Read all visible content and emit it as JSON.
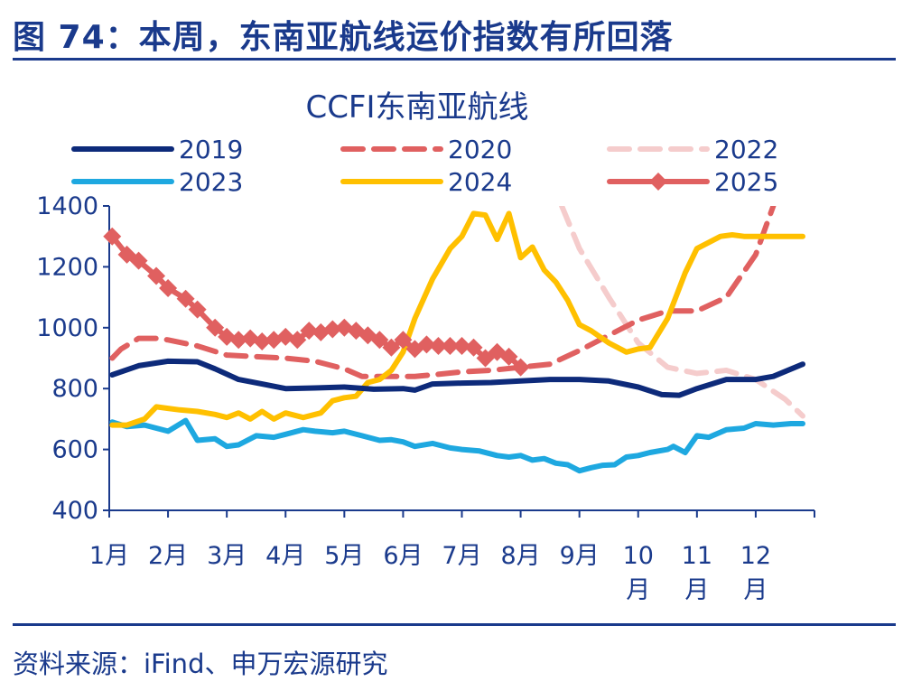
{
  "figure": {
    "title": "图 74：本周，东南亚航线运价指数有所回落",
    "source": "资料来源：iFind、申万宏源研究"
  },
  "chart_data": {
    "type": "line",
    "title": "CCFI东南亚航线",
    "xlabel": "",
    "ylabel": "",
    "ylim": [
      400,
      1400
    ],
    "yticks": [
      400,
      600,
      800,
      1000,
      1200,
      1400
    ],
    "xlim": [
      1,
      13
    ],
    "month_labels": [
      {
        "x": 1,
        "lines": [
          "1月"
        ]
      },
      {
        "x": 2,
        "lines": [
          "2月"
        ]
      },
      {
        "x": 3,
        "lines": [
          "3月"
        ]
      },
      {
        "x": 4,
        "lines": [
          "4月"
        ]
      },
      {
        "x": 5,
        "lines": [
          "5月"
        ]
      },
      {
        "x": 6,
        "lines": [
          "6月"
        ]
      },
      {
        "x": 7,
        "lines": [
          "7月"
        ]
      },
      {
        "x": 8,
        "lines": [
          "8月"
        ]
      },
      {
        "x": 9,
        "lines": [
          "9月"
        ]
      },
      {
        "x": 10,
        "lines": [
          "10",
          "月"
        ]
      },
      {
        "x": 11,
        "lines": [
          "11",
          "月"
        ]
      },
      {
        "x": 12,
        "lines": [
          "12",
          "月"
        ]
      }
    ],
    "grid": false,
    "legend_position": "top",
    "series": [
      {
        "name": "2019",
        "color": "#0d2a7a",
        "style": "solid",
        "x": [
          1.05,
          1.5,
          2,
          2.5,
          2.8,
          3.2,
          3.6,
          4,
          4.5,
          5,
          5.5,
          6,
          6.2,
          6.5,
          7,
          7.5,
          8,
          8.5,
          9,
          9.5,
          10,
          10.4,
          10.7,
          11,
          11.5,
          12,
          12.3,
          12.8
        ],
        "y": [
          845,
          875,
          890,
          888,
          865,
          830,
          815,
          800,
          802,
          805,
          798,
          800,
          795,
          815,
          818,
          820,
          825,
          830,
          830,
          825,
          805,
          780,
          778,
          800,
          830,
          830,
          840,
          880
        ]
      },
      {
        "name": "2020",
        "color": "#e06060",
        "style": "dash",
        "x": [
          1.05,
          1.2,
          1.5,
          1.8,
          2,
          2.5,
          3,
          3.5,
          4,
          4.5,
          5,
          5.3,
          5.8,
          6.2,
          6.5,
          7,
          7.5,
          8,
          8.5,
          9,
          9.5,
          10,
          10.5,
          11,
          11.5,
          12,
          12.3
        ],
        "y": [
          900,
          930,
          965,
          965,
          960,
          940,
          910,
          905,
          900,
          890,
          865,
          840,
          840,
          840,
          845,
          855,
          860,
          870,
          880,
          925,
          975,
          1025,
          1055,
          1055,
          1100,
          1240,
          1400
        ]
      },
      {
        "name": "2022",
        "color": "#f5cccc",
        "style": "dash",
        "x": [
          8.7,
          9,
          9.5,
          10,
          10.5,
          11,
          11.5,
          12,
          12.5,
          12.8
        ],
        "y": [
          1400,
          1260,
          1100,
          950,
          870,
          850,
          860,
          830,
          765,
          710
        ]
      },
      {
        "name": "2023",
        "color": "#1ea8e0",
        "style": "solid",
        "x": [
          1.05,
          1.3,
          1.6,
          2,
          2.3,
          2.5,
          2.8,
          3,
          3.2,
          3.5,
          3.8,
          4,
          4.3,
          4.5,
          4.8,
          5,
          5.3,
          5.6,
          5.8,
          6,
          6.2,
          6.5,
          6.8,
          7,
          7.3,
          7.6,
          7.8,
          8,
          8.2,
          8.4,
          8.6,
          8.8,
          9,
          9.2,
          9.4,
          9.6,
          9.8,
          10,
          10.2,
          10.5,
          10.6,
          10.8,
          11,
          11.2,
          11.5,
          11.8,
          12,
          12.3,
          12.6,
          12.8
        ],
        "y": [
          690,
          675,
          680,
          660,
          695,
          630,
          635,
          610,
          615,
          645,
          640,
          650,
          665,
          660,
          655,
          660,
          645,
          630,
          632,
          625,
          610,
          620,
          605,
          600,
          595,
          580,
          575,
          580,
          565,
          570,
          555,
          550,
          530,
          540,
          548,
          550,
          575,
          580,
          590,
          600,
          610,
          590,
          645,
          640,
          665,
          670,
          685,
          680,
          685,
          685
        ]
      },
      {
        "name": "2024",
        "color": "#ffc000",
        "style": "solid",
        "x": [
          1.05,
          1.3,
          1.6,
          1.8,
          2,
          2.2,
          2.5,
          2.8,
          3,
          3.2,
          3.4,
          3.6,
          3.8,
          4,
          4.3,
          4.6,
          4.8,
          5,
          5.2,
          5.4,
          5.6,
          5.8,
          6,
          6.2,
          6.5,
          6.8,
          7,
          7.2,
          7.4,
          7.6,
          7.8,
          8,
          8.2,
          8.4,
          8.6,
          8.8,
          9,
          9.2,
          9.5,
          9.8,
          10,
          10.2,
          10.5,
          10.8,
          11,
          11.2,
          11.4,
          11.6,
          11.8,
          12,
          12.3,
          12.6,
          12.8
        ],
        "y": [
          680,
          680,
          700,
          740,
          735,
          730,
          725,
          715,
          705,
          720,
          700,
          725,
          700,
          720,
          705,
          720,
          760,
          770,
          775,
          820,
          830,
          860,
          920,
          1030,
          1160,
          1260,
          1300,
          1375,
          1370,
          1290,
          1375,
          1230,
          1265,
          1190,
          1150,
          1090,
          1010,
          990,
          950,
          920,
          930,
          935,
          1030,
          1180,
          1260,
          1280,
          1300,
          1305,
          1300,
          1300,
          1300,
          1300,
          1300
        ]
      },
      {
        "name": "2025",
        "color": "#e06060",
        "style": "diamond",
        "x": [
          1.05,
          1.3,
          1.5,
          1.8,
          2,
          2.3,
          2.5,
          2.8,
          3,
          3.2,
          3.4,
          3.6,
          3.8,
          4,
          4.2,
          4.4,
          4.6,
          4.8,
          5,
          5.2,
          5.4,
          5.6,
          5.8,
          6,
          6.2,
          6.4,
          6.6,
          6.8,
          7,
          7.2,
          7.4,
          7.6,
          7.8,
          8
        ],
        "y": [
          1300,
          1240,
          1220,
          1170,
          1130,
          1095,
          1060,
          1000,
          970,
          960,
          965,
          955,
          960,
          970,
          960,
          990,
          985,
          995,
          1000,
          990,
          975,
          960,
          935,
          960,
          930,
          945,
          940,
          940,
          940,
          935,
          900,
          920,
          905,
          870
        ]
      }
    ]
  }
}
